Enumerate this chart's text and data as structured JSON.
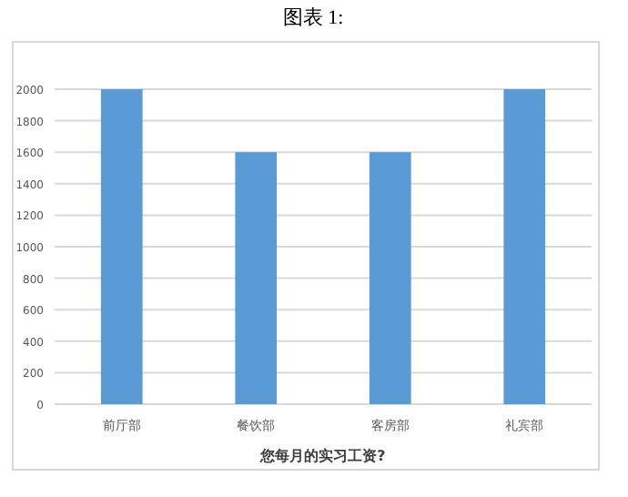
{
  "chart_data": {
    "type": "bar",
    "title": "图表 1:",
    "xlabel": "您每月的实习工资?",
    "categories": [
      "前厅部",
      "餐饮部",
      "客房部",
      "礼宾部"
    ],
    "values": [
      2000,
      1600,
      1600,
      2000
    ],
    "color": "#5b9bd5",
    "ylim": [
      0,
      2000
    ],
    "yticks": [
      0,
      200,
      400,
      600,
      800,
      1000,
      1200,
      1400,
      1600,
      1800,
      2000
    ],
    "grid": "y"
  }
}
